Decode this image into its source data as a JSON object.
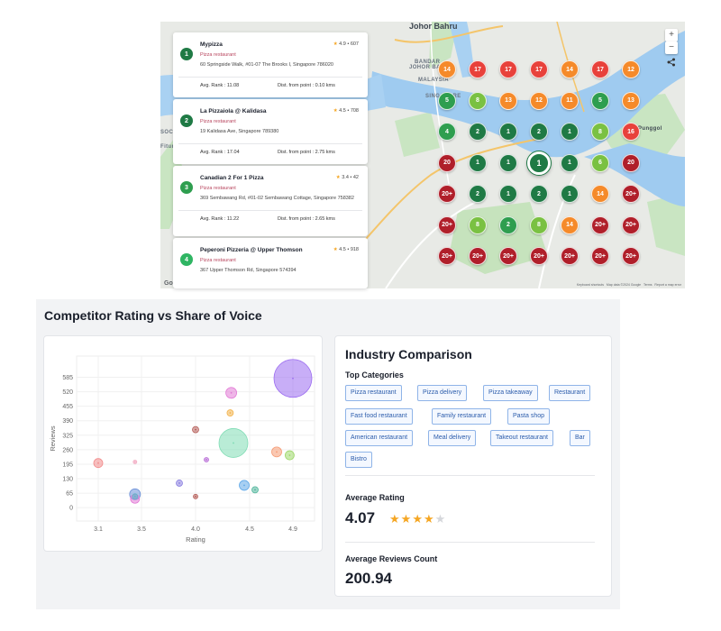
{
  "map": {
    "labels": {
      "city": "Johor Bahru",
      "bandar": "BANDAR",
      "johor_bahru_caps": "JOHOR BAHRU",
      "malaysia": "MALAYSIA",
      "singapore": "SINGAPORE",
      "punggol": "Punggol",
      "coney": "Coney Island Park",
      "soca": "SOCA",
      "fitur": "Fitur"
    },
    "zoom_in": "+",
    "zoom_out": "−",
    "share_icon": "share-icon",
    "attribution": "Keyboard shortcuts   Map data ©2024 Google   Terms   Report a map error",
    "google_logo": "Google",
    "pin_colors": {
      "dark_green": "#1f7a45",
      "green": "#2e9e4f",
      "light_green": "#7ac142",
      "orange": "#f58a2a",
      "red": "#e8413b",
      "dark_red": "#b01f2a"
    },
    "grid": [
      [
        {
          "v": "14",
          "c": "orange"
        },
        {
          "v": "17",
          "c": "red"
        },
        {
          "v": "17",
          "c": "red"
        },
        {
          "v": "17",
          "c": "red"
        },
        {
          "v": "14",
          "c": "orange"
        },
        {
          "v": "17",
          "c": "red"
        },
        {
          "v": "12",
          "c": "orange"
        }
      ],
      [
        {
          "v": "5",
          "c": "green"
        },
        {
          "v": "8",
          "c": "light_green"
        },
        {
          "v": "13",
          "c": "orange"
        },
        {
          "v": "12",
          "c": "orange"
        },
        {
          "v": "11",
          "c": "orange"
        },
        {
          "v": "5",
          "c": "green"
        },
        {
          "v": "13",
          "c": "orange"
        }
      ],
      [
        {
          "v": "4",
          "c": "green"
        },
        {
          "v": "2",
          "c": "dark_green"
        },
        {
          "v": "1",
          "c": "dark_green"
        },
        {
          "v": "2",
          "c": "dark_green"
        },
        {
          "v": "1",
          "c": "dark_green"
        },
        {
          "v": "8",
          "c": "light_green"
        },
        {
          "v": "16",
          "c": "red"
        }
      ],
      [
        {
          "v": "20",
          "c": "dark_red"
        },
        {
          "v": "1",
          "c": "dark_green"
        },
        {
          "v": "1",
          "c": "dark_green"
        },
        {
          "v": "1",
          "c": "dark_green"
        },
        {
          "v": "1",
          "c": "dark_green"
        },
        {
          "v": "6",
          "c": "light_green"
        },
        {
          "v": "20",
          "c": "dark_red"
        }
      ],
      [
        {
          "v": "20+",
          "c": "dark_red"
        },
        {
          "v": "2",
          "c": "dark_green"
        },
        {
          "v": "1",
          "c": "dark_green"
        },
        {
          "v": "2",
          "c": "dark_green"
        },
        {
          "v": "1",
          "c": "dark_green"
        },
        {
          "v": "14",
          "c": "orange"
        },
        {
          "v": "20+",
          "c": "dark_red"
        }
      ],
      [
        {
          "v": "20+",
          "c": "dark_red"
        },
        {
          "v": "8",
          "c": "light_green"
        },
        {
          "v": "2",
          "c": "green"
        },
        {
          "v": "8",
          "c": "light_green"
        },
        {
          "v": "14",
          "c": "orange"
        },
        {
          "v": "20+",
          "c": "dark_red"
        },
        {
          "v": "20+",
          "c": "dark_red"
        }
      ],
      [
        {
          "v": "20+",
          "c": "dark_red"
        },
        {
          "v": "20+",
          "c": "dark_red"
        },
        {
          "v": "20+",
          "c": "dark_red"
        },
        {
          "v": "20+",
          "c": "dark_red"
        },
        {
          "v": "20+",
          "c": "dark_red"
        },
        {
          "v": "20+",
          "c": "dark_red"
        },
        {
          "v": "20+",
          "c": "dark_red"
        }
      ]
    ],
    "results": [
      {
        "num": "1",
        "name": "Mypizza",
        "rating": "4.9",
        "reviews": "607",
        "type": "Pizza restaurant",
        "address": "60 Springside Walk, #01-07 The Brooks I, Singapore 786020",
        "rank_label": "Avg. Rank :",
        "rank": "11.08",
        "dist_label": "Dist. from point :",
        "dist": "0.10 kms",
        "color": "#1f7a45"
      },
      {
        "num": "2",
        "name": "La Pizzaiola @ Kalidasa",
        "rating": "4.5",
        "reviews": "708",
        "type": "Pizza restaurant",
        "address": "19 Kalidasa Ave, Singapore 789380",
        "rank_label": "Avg. Rank :",
        "rank": "17.04",
        "dist_label": "Dist. from point :",
        "dist": "2.75 kms",
        "color": "#1f7a45"
      },
      {
        "num": "3",
        "name": "Canadian 2 For 1 Pizza",
        "rating": "3.4",
        "reviews": "42",
        "type": "Pizza restaurant",
        "address": "369 Sembawang Rd, #01-02 Sembawang Cottage, Singapore 758382",
        "rank_label": "Avg. Rank :",
        "rank": "11.22",
        "dist_label": "Dist. from point :",
        "dist": "2.65 kms",
        "color": "#2e9e4f"
      },
      {
        "num": "4",
        "name": "Peperoni Pizzeria @ Upper Thomson",
        "rating": "4.5",
        "reviews": "918",
        "type": "Pizza restaurant",
        "address": "367 Upper Thomson Rd, Singapore 574394",
        "color": "#2fb563"
      }
    ]
  },
  "section": {
    "title": "Competitor Rating vs Share of Voice"
  },
  "chart_data": {
    "type": "scatter",
    "title": "",
    "xlabel": "Rating",
    "ylabel": "Reviews",
    "xlim": [
      2.9,
      5.1
    ],
    "ylim": [
      -60,
      680
    ],
    "xticks": [
      "3.1",
      "3.5",
      "4.0",
      "4.5",
      "4.9"
    ],
    "xtick_values": [
      3.1,
      3.5,
      4.0,
      4.5,
      4.9
    ],
    "yticks": [
      "0",
      "65",
      "130",
      "195",
      "260",
      "325",
      "390",
      "455",
      "520",
      "585"
    ],
    "ytick_values": [
      0,
      65,
      130,
      195,
      260,
      325,
      390,
      455,
      520,
      585
    ],
    "grid": true,
    "points": [
      {
        "x": 4.9,
        "y": 580,
        "r": 21,
        "color": "#9b6cf0"
      },
      {
        "x": 4.35,
        "y": 290,
        "r": 16,
        "color": "#7fdcb4"
      },
      {
        "x": 4.33,
        "y": 515,
        "r": 6,
        "color": "#e27ad6"
      },
      {
        "x": 4.32,
        "y": 425,
        "r": 3.5,
        "color": "#f2b24a"
      },
      {
        "x": 4.0,
        "y": 350,
        "r": 3.5,
        "color": "#b55c57"
      },
      {
        "x": 4.1,
        "y": 215,
        "r": 2.5,
        "color": "#b76ad6"
      },
      {
        "x": 4.75,
        "y": 250,
        "r": 5.5,
        "color": "#f59a73"
      },
      {
        "x": 4.87,
        "y": 235,
        "r": 5,
        "color": "#9ed86a"
      },
      {
        "x": 3.85,
        "y": 110,
        "r": 3.5,
        "color": "#8a7fe0"
      },
      {
        "x": 4.45,
        "y": 100,
        "r": 5.5,
        "color": "#5fa8e8"
      },
      {
        "x": 4.55,
        "y": 80,
        "r": 3.5,
        "color": "#4fb59a"
      },
      {
        "x": 4.0,
        "y": 50,
        "r": 2.5,
        "color": "#b55c57"
      },
      {
        "x": 3.1,
        "y": 200,
        "r": 5,
        "color": "#f28b8b"
      },
      {
        "x": 3.44,
        "y": 205,
        "r": 2,
        "color": "#f2a8c0"
      },
      {
        "x": 3.44,
        "y": 60,
        "r": 6,
        "color": "#6a8fd8"
      },
      {
        "x": 3.44,
        "y": 40,
        "r": 5,
        "color": "#e27ad6"
      },
      {
        "x": 3.44,
        "y": 50,
        "r": 3,
        "color": "#5fb8c8"
      }
    ]
  },
  "comparison": {
    "title": "Industry Comparison",
    "top_categories_label": "Top Categories",
    "categories": [
      "Pizza restaurant",
      "Pizza delivery",
      "Pizza takeaway",
      "Restaurant",
      "Fast food restaurant",
      "Family restaurant",
      "Pasta shop",
      "American restaurant",
      "Meal delivery",
      "Takeout restaurant",
      "Bar",
      "Bistro"
    ],
    "average_rating_label": "Average Rating",
    "average_rating": "4.07",
    "average_rating_value": 4.07,
    "stars_max": 5,
    "average_reviews_label": "Average Reviews Count",
    "average_reviews": "200.94"
  }
}
